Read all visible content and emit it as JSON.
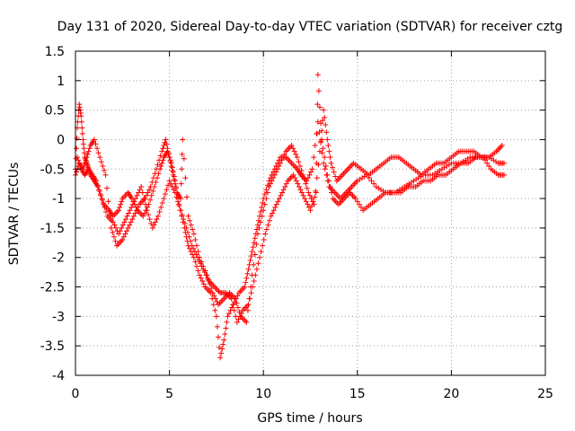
{
  "chart_data": {
    "type": "scatter",
    "title": "Day 131 of 2020, Sidereal Day-to-day VTEC variation (SDTVAR) for receiver cztg",
    "xlabel": "GPS time / hours",
    "ylabel": "SDTVAR / TECUs",
    "xlim": [
      0,
      25
    ],
    "ylim": [
      -4,
      1.5
    ],
    "xticks": [
      "0",
      "5",
      "10",
      "15",
      "20",
      "25"
    ],
    "yticks": [
      "1.5",
      "1",
      "0.5",
      "0",
      "-0.5",
      "-1",
      "-1.5",
      "-2",
      "-2.5",
      "-3",
      "-3.5",
      "-4"
    ],
    "xtick_values": [
      0,
      5,
      10,
      15,
      20,
      25
    ],
    "ytick_values": [
      1.5,
      1,
      0.5,
      0,
      -0.5,
      -1,
      -1.5,
      -2,
      -2.5,
      -3,
      -3.5,
      -4
    ],
    "grid": true,
    "marker": "+",
    "series_color": "#ff0000",
    "series": [
      {
        "name": "SDTVAR",
        "x": [
          0.0,
          0.1,
          0.2,
          0.3,
          0.4,
          0.5,
          0.6,
          0.7,
          0.8,
          1.0,
          1.2,
          1.5,
          1.8,
          2.0,
          2.3,
          2.5,
          2.8,
          3.0,
          3.3,
          3.6,
          3.9,
          4.2,
          4.5,
          4.7,
          4.9,
          5.1,
          5.3,
          5.5,
          5.8,
          6.0,
          6.3,
          6.6,
          6.9,
          7.2,
          7.5,
          7.7,
          7.9,
          8.1,
          8.4,
          8.7,
          9.0,
          9.2,
          9.4,
          9.6,
          9.8,
          10.0,
          10.3,
          10.6,
          10.9,
          11.2,
          11.5,
          11.8,
          12.0,
          12.3,
          12.6,
          12.9,
          13.2,
          13.5,
          13.8,
          14.1,
          14.4,
          14.7,
          15.0,
          15.5,
          16.0,
          16.5,
          17.0,
          17.5,
          18.0,
          18.5,
          19.0,
          19.5,
          20.0,
          20.5,
          21.0,
          21.5,
          22.0,
          22.5,
          22.8
        ],
        "y": [
          -0.5,
          0.2,
          0.6,
          0.4,
          0.0,
          -0.3,
          -0.4,
          -0.5,
          -0.6,
          -0.7,
          -0.8,
          -1.1,
          -1.2,
          -1.3,
          -1.2,
          -1.0,
          -0.9,
          -1.0,
          -1.2,
          -1.3,
          -1.1,
          -0.8,
          -0.5,
          -0.3,
          -0.2,
          -0.4,
          -0.7,
          -1.1,
          -1.5,
          -1.8,
          -2.0,
          -2.3,
          -2.5,
          -2.6,
          -3.0,
          -3.7,
          -3.4,
          -3.0,
          -2.8,
          -2.6,
          -2.5,
          -2.2,
          -1.9,
          -1.6,
          -1.3,
          -1.0,
          -0.7,
          -0.5,
          -0.3,
          -0.3,
          -0.4,
          -0.5,
          -0.6,
          -0.7,
          -0.5,
          0.3,
          -0.4,
          -0.8,
          -0.9,
          -1.0,
          -0.9,
          -0.8,
          -0.7,
          -0.6,
          -0.8,
          -0.9,
          -0.9,
          -0.8,
          -0.7,
          -0.6,
          -0.6,
          -0.5,
          -0.4,
          -0.4,
          -0.3,
          -0.3,
          -0.3,
          -0.4,
          -0.4
        ]
      },
      {
        "name": "SDTVAR",
        "x": [
          0.0,
          0.2,
          0.4,
          0.6,
          0.8,
          1.0,
          1.3,
          1.6,
          1.9,
          2.2,
          2.5,
          2.8,
          3.1,
          3.4,
          3.7,
          4.0,
          4.3,
          4.6,
          4.8,
          5.0,
          5.2,
          5.4,
          5.6,
          5.7,
          6.0,
          6.3,
          6.6,
          7.0,
          7.3,
          7.6,
          7.9,
          8.2,
          8.5,
          8.8,
          9.1,
          9.4,
          9.7,
          10.0,
          10.3,
          10.6,
          10.9,
          11.2,
          11.5,
          11.8,
          12.1,
          12.4,
          12.7,
          13.0,
          13.2,
          13.4,
          13.6,
          13.9,
          14.2,
          14.5,
          14.8,
          15.2,
          15.6,
          16.0,
          16.4,
          16.8,
          17.2,
          17.6,
          18.0,
          18.4,
          18.8,
          19.2,
          19.6,
          20.0,
          20.4,
          20.8,
          21.2,
          21.6,
          22.0,
          22.4,
          22.7
        ],
        "y": [
          -0.6,
          -0.4,
          -0.5,
          -0.3,
          -0.1,
          0.0,
          -0.3,
          -0.6,
          -1.5,
          -1.8,
          -1.7,
          -1.5,
          -1.3,
          -1.1,
          -1.0,
          -0.8,
          -0.5,
          -0.2,
          0.0,
          -0.3,
          -0.6,
          -0.9,
          -1.0,
          0.0,
          -1.3,
          -1.6,
          -2.0,
          -2.3,
          -2.6,
          -2.8,
          -2.7,
          -2.6,
          -2.7,
          -3.0,
          -3.1,
          -2.3,
          -1.6,
          -1.2,
          -0.8,
          -0.6,
          -0.4,
          -0.2,
          -0.1,
          -0.3,
          -0.6,
          -0.9,
          -1.1,
          -0.2,
          0.5,
          0.0,
          -0.4,
          -0.7,
          -0.6,
          -0.5,
          -0.4,
          -0.5,
          -0.6,
          -0.5,
          -0.4,
          -0.3,
          -0.3,
          -0.4,
          -0.5,
          -0.6,
          -0.5,
          -0.4,
          -0.4,
          -0.3,
          -0.2,
          -0.2,
          -0.2,
          -0.3,
          -0.3,
          -0.2,
          -0.1
        ]
      },
      {
        "name": "SDTVAR",
        "x": [
          0.1,
          0.3,
          0.5,
          0.7,
          0.9,
          1.1,
          1.4,
          1.7,
          2.0,
          2.3,
          2.6,
          2.9,
          3.2,
          3.5,
          3.8,
          4.1,
          4.4,
          4.7,
          5.0,
          5.3,
          5.6,
          5.9,
          6.2,
          6.5,
          6.8,
          7.1,
          7.4,
          7.7,
          8.0,
          8.3,
          8.6,
          8.9,
          9.2,
          9.5,
          9.8,
          10.1,
          10.4,
          10.7,
          11.0,
          11.3,
          11.6,
          11.9,
          12.2,
          12.5,
          12.8,
          12.9,
          13.1,
          13.4,
          13.7,
          14.0,
          14.3,
          14.6,
          14.9,
          15.3,
          15.7,
          16.1,
          16.5,
          16.9,
          17.3,
          17.7,
          18.1,
          18.5,
          18.9,
          19.3,
          19.7,
          20.1,
          20.5,
          20.9,
          21.3,
          21.7,
          22.1,
          22.5,
          22.8
        ],
        "y": [
          -0.3,
          -0.5,
          -0.6,
          -0.5,
          -0.6,
          -0.7,
          -1.0,
          -1.3,
          -1.4,
          -1.6,
          -1.4,
          -1.2,
          -1.0,
          -0.8,
          -1.2,
          -1.5,
          -1.3,
          -1.0,
          -0.7,
          -0.9,
          -1.2,
          -1.5,
          -1.8,
          -2.0,
          -2.2,
          -2.4,
          -2.5,
          -2.6,
          -2.6,
          -2.7,
          -3.1,
          -2.9,
          -2.8,
          -2.4,
          -2.0,
          -1.6,
          -1.3,
          -1.1,
          -0.9,
          -0.7,
          -0.6,
          -0.8,
          -1.0,
          -1.2,
          -0.9,
          1.1,
          0.0,
          -0.6,
          -1.0,
          -1.1,
          -1.0,
          -0.9,
          -1.0,
          -1.2,
          -1.1,
          -1.0,
          -0.9,
          -0.9,
          -0.9,
          -0.8,
          -0.8,
          -0.7,
          -0.7,
          -0.6,
          -0.6,
          -0.5,
          -0.4,
          -0.4,
          -0.3,
          -0.3,
          -0.5,
          -0.6,
          -0.6
        ]
      }
    ]
  }
}
